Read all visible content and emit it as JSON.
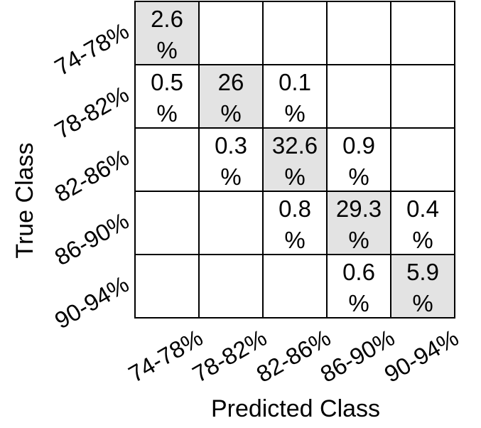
{
  "chart_data": {
    "type": "heatmap",
    "title": "",
    "xlabel": "Predicted Class",
    "ylabel": "True Class",
    "x_categories": [
      "74-78%",
      "78-82%",
      "82-86%",
      "86-90%",
      "90-94%"
    ],
    "y_categories": [
      "74-78%",
      "78-82%",
      "82-86%",
      "86-90%",
      "90-94%"
    ],
    "value_unit": "%",
    "cells": [
      {
        "row": 0,
        "col": 0,
        "value": "2.6"
      },
      {
        "row": 1,
        "col": 0,
        "value": "0.5"
      },
      {
        "row": 1,
        "col": 1,
        "value": "26"
      },
      {
        "row": 1,
        "col": 2,
        "value": "0.1"
      },
      {
        "row": 2,
        "col": 1,
        "value": "0.3"
      },
      {
        "row": 2,
        "col": 2,
        "value": "32.6"
      },
      {
        "row": 2,
        "col": 3,
        "value": "0.9"
      },
      {
        "row": 3,
        "col": 2,
        "value": "0.8"
      },
      {
        "row": 3,
        "col": 3,
        "value": "29.3"
      },
      {
        "row": 3,
        "col": 4,
        "value": "0.4"
      },
      {
        "row": 4,
        "col": 3,
        "value": "0.6"
      },
      {
        "row": 4,
        "col": 4,
        "value": "5.9"
      }
    ],
    "diagonal_color": "#e3e3e3",
    "cell_color": "#ffffff",
    "grid_color": "#000000"
  }
}
